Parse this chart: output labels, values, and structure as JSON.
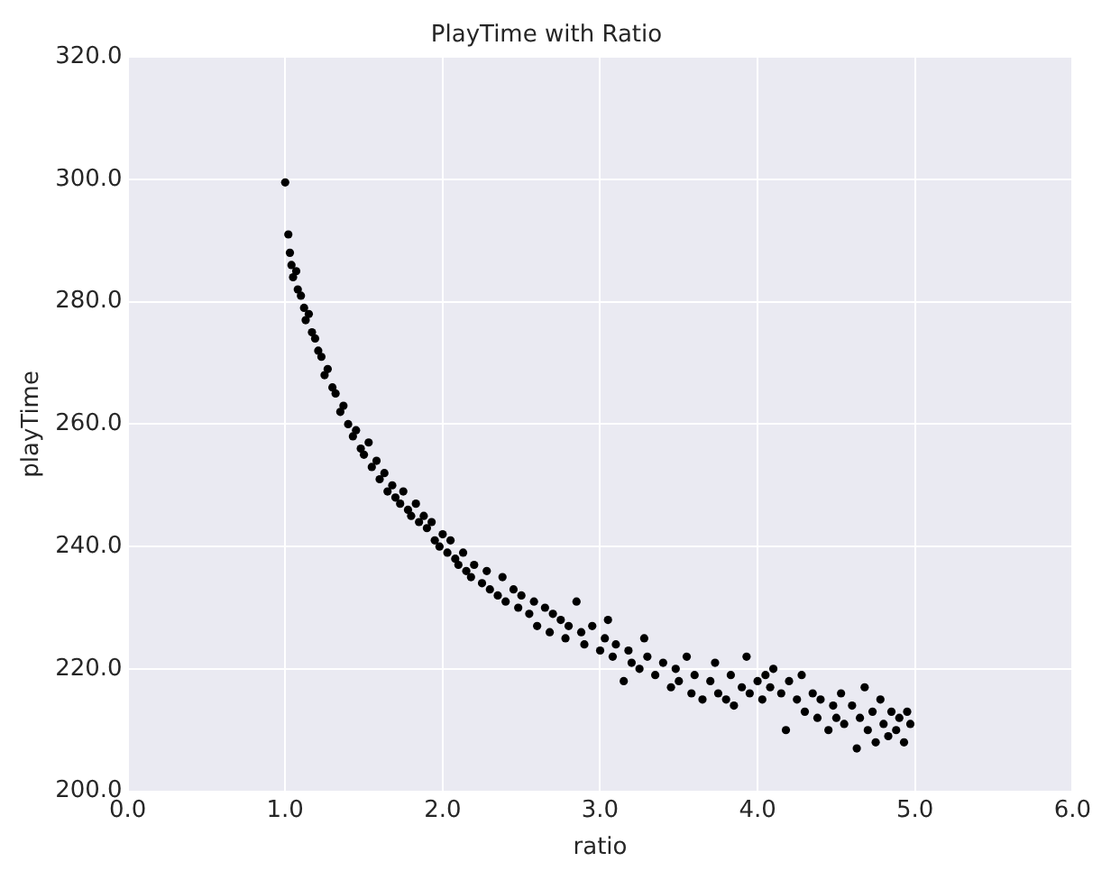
{
  "chart_data": {
    "type": "scatter",
    "title": "PlayTime with Ratio",
    "xlabel": "ratio",
    "ylabel": "playTime",
    "x": [
      1.0,
      1.02,
      1.03,
      1.04,
      1.05,
      1.07,
      1.08,
      1.1,
      1.12,
      1.13,
      1.15,
      1.17,
      1.19,
      1.21,
      1.23,
      1.25,
      1.27,
      1.3,
      1.32,
      1.35,
      1.37,
      1.4,
      1.43,
      1.45,
      1.48,
      1.5,
      1.53,
      1.55,
      1.58,
      1.6,
      1.63,
      1.65,
      1.68,
      1.7,
      1.73,
      1.75,
      1.78,
      1.8,
      1.83,
      1.85,
      1.88,
      1.9,
      1.93,
      1.95,
      1.98,
      2.0,
      2.03,
      2.05,
      2.08,
      2.1,
      2.13,
      2.15,
      2.18,
      2.2,
      2.25,
      2.28,
      2.3,
      2.35,
      2.38,
      2.4,
      2.45,
      2.48,
      2.5,
      2.55,
      2.58,
      2.6,
      2.65,
      2.68,
      2.7,
      2.75,
      2.78,
      2.8,
      2.85,
      2.88,
      2.9,
      2.95,
      3.0,
      3.03,
      3.05,
      3.08,
      3.1,
      3.15,
      3.18,
      3.2,
      3.25,
      3.28,
      3.3,
      3.35,
      3.4,
      3.45,
      3.48,
      3.5,
      3.55,
      3.58,
      3.6,
      3.65,
      3.7,
      3.73,
      3.75,
      3.8,
      3.83,
      3.85,
      3.9,
      3.93,
      3.95,
      4.0,
      4.03,
      4.05,
      4.08,
      4.1,
      4.15,
      4.18,
      4.2,
      4.25,
      4.28,
      4.3,
      4.35,
      4.38,
      4.4,
      4.45,
      4.48,
      4.5,
      4.53,
      4.55,
      4.6,
      4.63,
      4.65,
      4.68,
      4.7,
      4.73,
      4.75,
      4.78,
      4.8,
      4.83,
      4.85,
      4.88,
      4.9,
      4.93,
      4.95,
      4.97
    ],
    "series": [
      {
        "color": "#000000",
        "values": [
          299.5,
          291,
          288,
          286,
          284,
          285,
          282,
          281,
          279,
          277,
          278,
          275,
          274,
          272,
          271,
          268,
          269,
          266,
          265,
          262,
          263,
          260,
          258,
          259,
          256,
          255,
          257,
          253,
          254,
          251,
          252,
          249,
          250,
          248,
          247,
          249,
          246,
          245,
          247,
          244,
          245,
          243,
          244,
          241,
          240,
          242,
          239,
          241,
          238,
          237,
          239,
          236,
          235,
          237,
          234,
          236,
          233,
          232,
          235,
          231,
          233,
          230,
          232,
          229,
          231,
          227,
          230,
          226,
          229,
          228,
          225,
          227,
          231,
          226,
          224,
          227,
          223,
          225,
          228,
          222,
          224,
          218,
          223,
          221,
          220,
          225,
          222,
          219,
          221,
          217,
          220,
          218,
          222,
          216,
          219,
          215,
          218,
          221,
          216,
          215,
          219,
          214,
          217,
          222,
          216,
          218,
          215,
          219,
          217,
          220,
          216,
          210,
          218,
          215,
          219,
          213,
          216,
          212,
          215,
          210,
          214,
          212,
          216,
          211,
          214,
          207,
          212,
          217,
          210,
          213,
          208,
          215,
          211,
          209,
          213,
          210,
          212,
          208,
          213,
          211
        ]
      }
    ],
    "xlim": [
      0,
      6
    ],
    "xticks": [
      {
        "value": 0,
        "label": "0.0"
      },
      {
        "value": 1,
        "label": "1.0"
      },
      {
        "value": 2,
        "label": "2.0"
      },
      {
        "value": 3,
        "label": "3.0"
      },
      {
        "value": 4,
        "label": "4.0"
      },
      {
        "value": 5,
        "label": "5.0"
      },
      {
        "value": 6,
        "label": "6.0"
      }
    ],
    "ylim": [
      200,
      320
    ],
    "yticks": [
      {
        "value": 200,
        "label": "200.0"
      },
      {
        "value": 220,
        "label": "220.0"
      },
      {
        "value": 240,
        "label": "240.0"
      },
      {
        "value": 260,
        "label": "260.0"
      },
      {
        "value": 280,
        "label": "280.0"
      },
      {
        "value": 300,
        "label": "300.0"
      },
      {
        "value": 320,
        "label": "320.0"
      }
    ],
    "grid": true,
    "legend": false,
    "marker": "circle"
  }
}
